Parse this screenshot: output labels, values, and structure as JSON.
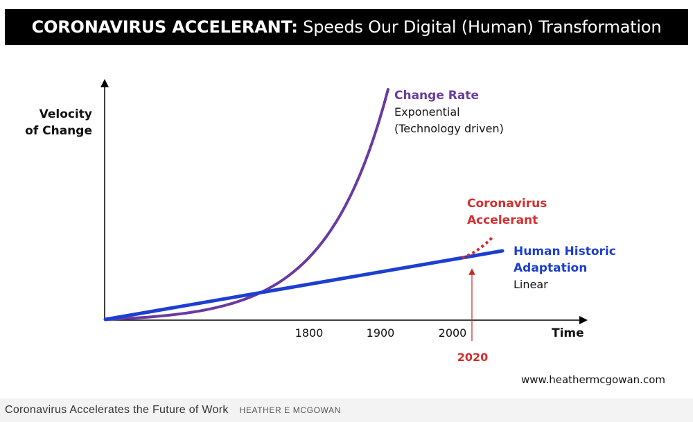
{
  "banner": {
    "title_bold": "CORONAVIRUS ACCELERANT:",
    "title_rest": "Speeds Our Digital (Human) Transformation"
  },
  "chart_data": {
    "type": "line",
    "title": "CORONAVIRUS ACCELERANT: Speeds Our Digital (Human) Transformation",
    "ylabel": [
      "Velocity",
      "of Change"
    ],
    "xlabel": "Time",
    "x_ticks": [
      "1800",
      "1900",
      "2000"
    ],
    "marker": {
      "label": "2020",
      "color": "#d32f2f"
    },
    "series": [
      {
        "name": "Change Rate",
        "description": [
          "Exponential",
          "(Technology driven)"
        ],
        "color": "#6a3aa0",
        "shape": "exponential"
      },
      {
        "name": "Human Historic Adaptation",
        "name_lines": [
          "Human Historic",
          "Adaptation"
        ],
        "description": [
          "Linear"
        ],
        "color": "#1c3fd1",
        "shape": "linear"
      },
      {
        "name": "Coronavirus Accelerant",
        "name_lines": [
          "Coronavirus",
          "Accelerant"
        ],
        "color": "#d32f2f",
        "shape": "dotted"
      }
    ],
    "source_url": "www.heathermcgowan.com"
  },
  "caption": {
    "text": "Coronavirus Accelerates the Future of Work",
    "credit": "HEATHER E MCGOWAN"
  }
}
